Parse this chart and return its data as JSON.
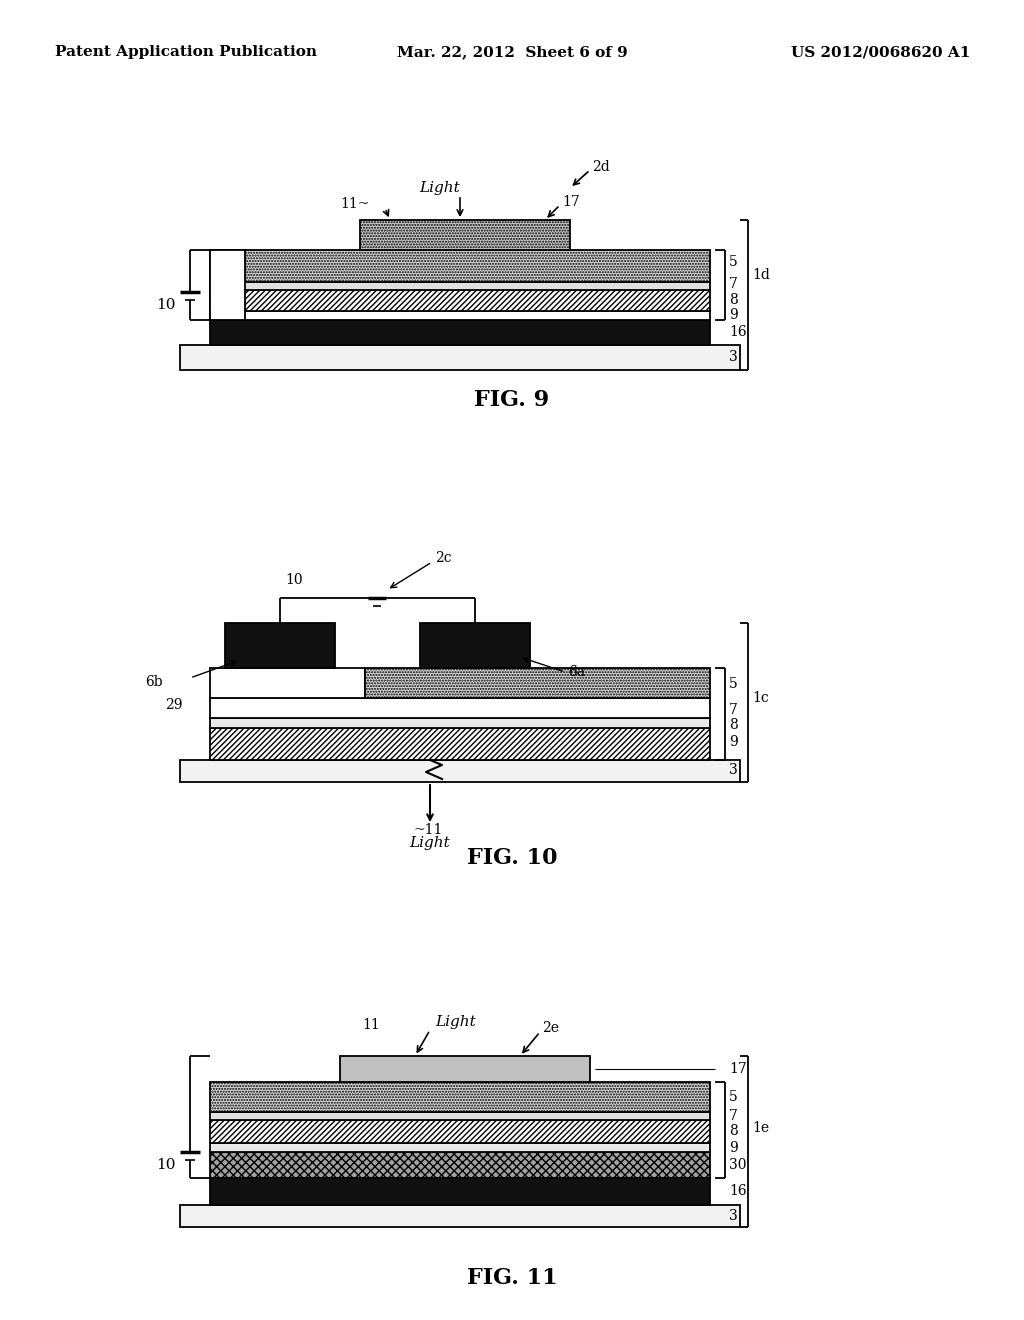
{
  "bg_color": "#ffffff",
  "header_left": "Patent Application Publication",
  "header_center": "Mar. 22, 2012  Sheet 6 of 9",
  "header_right": "US 2012/0068620 A1",
  "fig9_label": "FIG. 9",
  "fig10_label": "FIG. 10",
  "fig11_label": "FIG. 11",
  "line_color": "#000000"
}
